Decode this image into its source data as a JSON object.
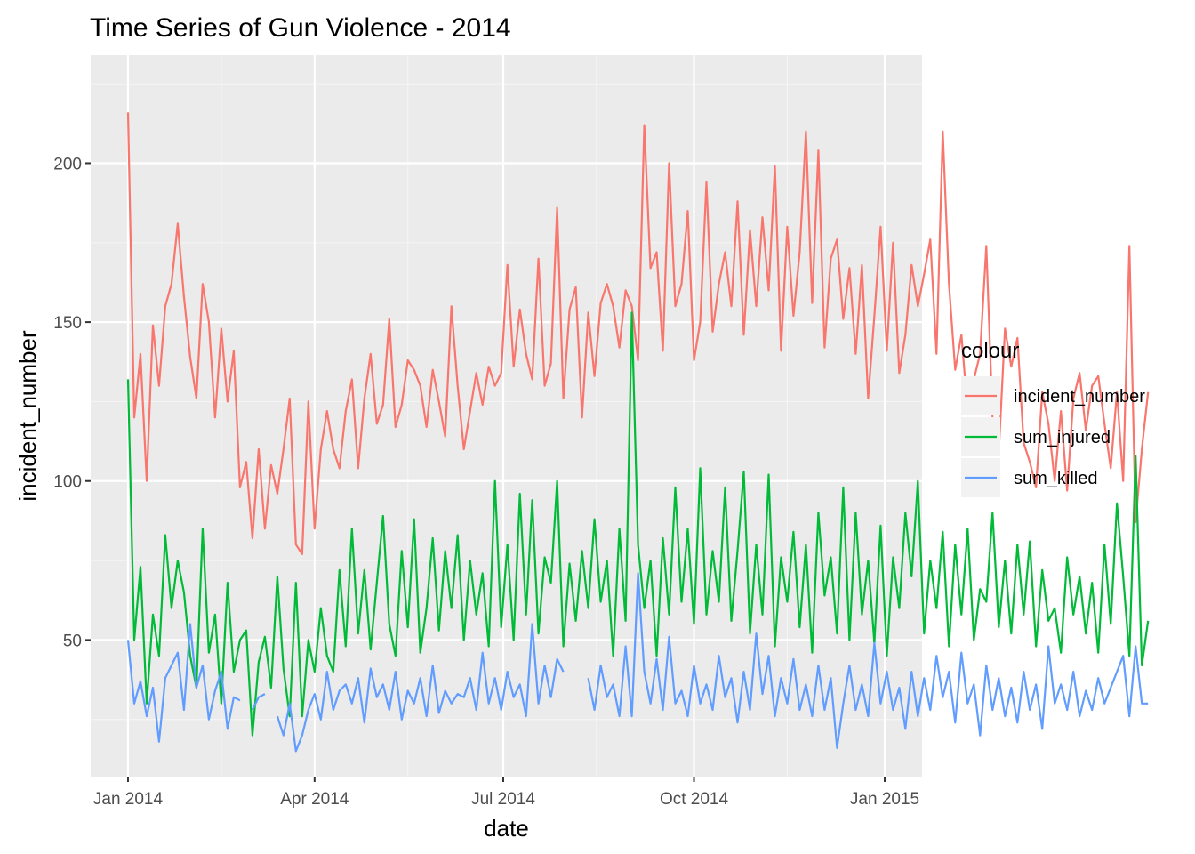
{
  "chart_data": {
    "type": "line",
    "title": "Time Series of Gun Violence - 2014",
    "xlabel": "date",
    "ylabel": "incident_number",
    "x_tick_labels": [
      "Jan 2014",
      "Apr 2014",
      "Jul 2014",
      "Oct 2014",
      "Jan 2015"
    ],
    "x_tick_dates": [
      "2014-01-01",
      "2014-04-01",
      "2014-07-01",
      "2014-10-01",
      "2015-01-01"
    ],
    "x_minor_dates": [
      "2014-02-15",
      "2014-05-16",
      "2014-08-15",
      "2014-11-15"
    ],
    "y_ticks": [
      50,
      100,
      150,
      200
    ],
    "y_minor": [
      25,
      75,
      125,
      175,
      225
    ],
    "xlim": [
      "2013-12-14",
      "2015-01-19"
    ],
    "ylim": [
      7,
      234
    ],
    "grid": true,
    "background": "#ebebeb",
    "legend": {
      "title": "colour",
      "placement": "right"
    },
    "x_start": "2014-01-01",
    "x_step": "3 days",
    "series": [
      {
        "name": "incident_number",
        "color": "#f8766d",
        "values": [
          216,
          120,
          140,
          100,
          149,
          130,
          155,
          162,
          181,
          158,
          139,
          126,
          162,
          150,
          120,
          148,
          125,
          141,
          98,
          106,
          82,
          110,
          85,
          105,
          96,
          110,
          126,
          80,
          77,
          125,
          85,
          110,
          122,
          110,
          104,
          122,
          132,
          104,
          126,
          140,
          118,
          124,
          151,
          117,
          124,
          138,
          135,
          130,
          117,
          135,
          125,
          114,
          155,
          130,
          110,
          122,
          134,
          124,
          136,
          130,
          134,
          168,
          136,
          154,
          140,
          132,
          170,
          130,
          137,
          186,
          126,
          154,
          161,
          120,
          153,
          133,
          156,
          162,
          155,
          142,
          160,
          155,
          138,
          212,
          167,
          172,
          141,
          200,
          155,
          162,
          185,
          138,
          150,
          194,
          147,
          162,
          172,
          155,
          188,
          146,
          179,
          155,
          183,
          160,
          199,
          141,
          180,
          152,
          172,
          210,
          156,
          204,
          142,
          170,
          176,
          151,
          167,
          140,
          168,
          126,
          152,
          180,
          141,
          175,
          134,
          146,
          168,
          155,
          165,
          176,
          140,
          210,
          162,
          135,
          146,
          122,
          132,
          140,
          174,
          120,
          109,
          148,
          136,
          145,
          112,
          106,
          98,
          128,
          118,
          100,
          122,
          97,
          126,
          134,
          116,
          130,
          133,
          118,
          104,
          128,
          100,
          174,
          87,
          110,
          128
        ]
      },
      {
        "name": "sum_injured",
        "color": "#00ba38",
        "values": [
          132,
          50,
          73,
          30,
          58,
          45,
          83,
          60,
          75,
          65,
          45,
          35,
          85,
          46,
          58,
          30,
          68,
          40,
          50,
          53,
          20,
          43,
          51,
          35,
          70,
          41,
          26,
          68,
          26,
          50,
          40,
          60,
          45,
          40,
          72,
          48,
          85,
          52,
          72,
          47,
          68,
          89,
          55,
          45,
          78,
          54,
          88,
          46,
          60,
          82,
          53,
          78,
          60,
          83,
          50,
          75,
          58,
          71,
          48,
          100,
          54,
          80,
          50,
          96,
          58,
          94,
          52,
          76,
          68,
          100,
          48,
          74,
          56,
          78,
          60,
          88,
          62,
          75,
          45,
          85,
          56,
          153,
          80,
          60,
          75,
          45,
          82,
          58,
          98,
          62,
          85,
          55,
          104,
          58,
          78,
          62,
          98,
          56,
          78,
          103,
          52,
          80,
          58,
          102,
          48,
          76,
          62,
          84,
          54,
          80,
          46,
          90,
          64,
          76,
          52,
          98,
          50,
          90,
          58,
          75,
          49,
          86,
          45,
          76,
          60,
          90,
          70,
          100,
          52,
          75,
          60,
          84,
          48,
          80,
          58,
          85,
          50,
          66,
          62,
          90,
          54,
          75,
          52,
          80,
          58,
          81,
          48,
          72,
          56,
          60,
          46,
          76,
          58,
          70,
          52,
          68,
          46,
          80,
          55,
          93,
          70,
          45,
          108,
          42,
          56
        ]
      },
      {
        "name": "sum_killed",
        "color": "#619cff",
        "values": [
          50,
          30,
          37,
          26,
          35,
          18,
          38,
          42,
          46,
          28,
          55,
          35,
          42,
          25,
          34,
          40,
          22,
          32,
          31,
          null,
          28,
          32,
          33,
          null,
          26,
          20,
          30,
          15,
          20,
          28,
          33,
          25,
          40,
          28,
          34,
          36,
          30,
          38,
          24,
          41,
          32,
          36,
          28,
          40,
          25,
          34,
          30,
          38,
          26,
          42,
          27,
          34,
          30,
          33,
          32,
          38,
          28,
          46,
          30,
          38,
          28,
          40,
          32,
          36,
          26,
          55,
          30,
          42,
          32,
          44,
          40,
          null,
          null,
          null,
          38,
          28,
          42,
          32,
          36,
          26,
          48,
          26,
          71,
          40,
          30,
          44,
          28,
          51,
          30,
          34,
          26,
          42,
          30,
          36,
          28,
          45,
          32,
          38,
          24,
          40,
          28,
          52,
          33,
          45,
          26,
          38,
          30,
          44,
          28,
          36,
          26,
          42,
          28,
          38,
          16,
          30,
          42,
          28,
          36,
          26,
          49,
          30,
          40,
          28,
          35,
          22,
          40,
          26,
          38,
          28,
          45,
          32,
          40,
          24,
          46,
          30,
          36,
          20,
          42,
          28,
          38,
          26,
          35,
          24,
          40,
          28,
          36,
          22,
          48,
          30,
          36,
          28,
          40,
          26,
          34,
          28,
          38,
          30,
          35,
          40,
          45,
          26,
          48,
          30,
          30
        ]
      }
    ]
  }
}
